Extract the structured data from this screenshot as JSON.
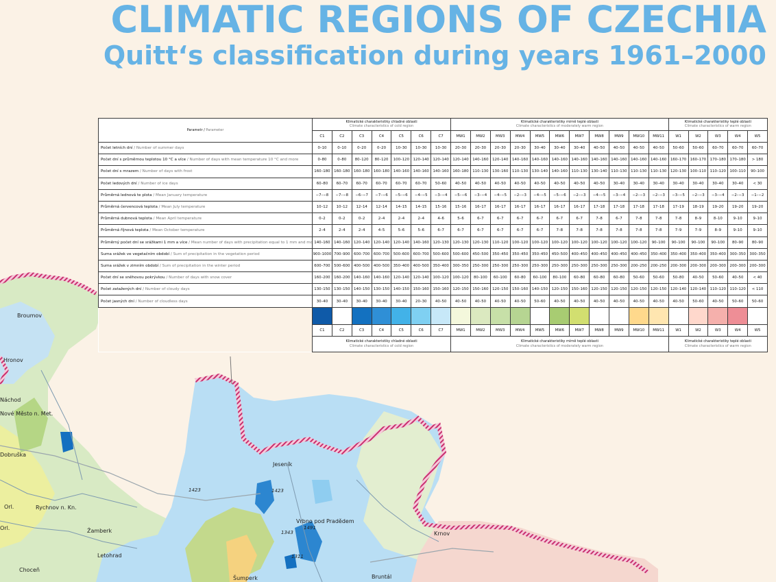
{
  "title": "CLIMATIC REGIONS OF CZECHIA",
  "subtitle": "Quitt‘s classification during years 1961–2000",
  "table": {
    "param_header": {
      "cz": "Parametr",
      "en": "Parameter"
    },
    "groups": [
      {
        "cz": "Klimatické charakteristiky chladné oblasti",
        "en": "Climate characteristics of cold region"
      },
      {
        "cz": "Klimatické charakteristiky mírně teplé oblasti",
        "en": "Climate characteristics of moderately warm region"
      },
      {
        "cz": "Klimatické charakteristiky teplé oblasti",
        "en": "Climate characteristics of warm region"
      }
    ],
    "regions": [
      "C1",
      "C2",
      "C3",
      "C4",
      "C5",
      "C6",
      "C7",
      "MW1",
      "MW2",
      "MW3",
      "MW4",
      "MW5",
      "MW6",
      "MW7",
      "MW8",
      "MW9",
      "MW10",
      "MW11",
      "W1",
      "W2",
      "W3",
      "W4",
      "W5"
    ],
    "swatch_colors": [
      "#0f5aa8",
      "#ffffff",
      "#1371c0",
      "#2f8fd6",
      "#42b2e8",
      "#7fd0f2",
      "#c7e8f8",
      "#f4f8dc",
      "#dbe9c0",
      "#c7e0a8",
      "#b6d592",
      "#ffffff",
      "#a8cc72",
      "#d2df70",
      "#ffffff",
      "#ffffff",
      "#ffd98c",
      "#ffe6b0",
      "#ffffff",
      "#ffd8cc",
      "#f5b0ac",
      "#ee8e96",
      "#ffffff"
    ],
    "rows": [
      {
        "cz": "Počet letních dní",
        "en": "Number of summer days",
        "values": [
          "0–10",
          "0–10",
          "0–20",
          "0–20",
          "10–30",
          "10–30",
          "10–30",
          "20–30",
          "20–30",
          "20–30",
          "20–30",
          "30–40",
          "30–40",
          "30–40",
          "40–50",
          "40–50",
          "40–50",
          "40–50",
          "50–60",
          "50–60",
          "60–70",
          "60–70",
          "60–70"
        ]
      },
      {
        "cz": "Počet dní s průměrnou teplotou 10 °C a více",
        "en": "Number of days with mean temperature 10 °C and more",
        "values": [
          "0–80",
          "0–80",
          "80–120",
          "80–120",
          "100–120",
          "120–140",
          "120–140",
          "120–140",
          "140–160",
          "120–140",
          "140–160",
          "140–160",
          "140–160",
          "140–160",
          "140–160",
          "140–160",
          "140–160",
          "140–160",
          "160–170",
          "160–170",
          "170–180",
          "170–180",
          "> 180"
        ]
      },
      {
        "cz": "Počet dní s mrazem",
        "en": "Number of days with frost",
        "values": [
          "160–180",
          "160–180",
          "160–180",
          "160–180",
          "140–160",
          "140–160",
          "140–160",
          "160–180",
          "110–130",
          "130–160",
          "110–130",
          "130–140",
          "140–160",
          "110–130",
          "130–140",
          "110–130",
          "110–130",
          "110–130",
          "120–130",
          "100–110",
          "110–120",
          "100–110",
          "90–100"
        ]
      },
      {
        "cz": "Počet ledových dní",
        "en": "Number of ice days",
        "values": [
          "60–80",
          "60–70",
          "60–70",
          "60–70",
          "60–70",
          "60–70",
          "50–60",
          "40–50",
          "40–50",
          "40–50",
          "40–50",
          "40–50",
          "40–50",
          "40–50",
          "40–50",
          "30–40",
          "30–40",
          "30–40",
          "30–40",
          "30–40",
          "30–40",
          "30–40",
          "< 30"
        ]
      },
      {
        "cz": "Průměrná lednová te  plota",
        "en": "Mean January temperature",
        "values": [
          "−7–−8",
          "−7–−8",
          "−6–−7",
          "−7–−6",
          "−5–−6",
          "−4–−5",
          "−3–−4",
          "−5–−6",
          "−3–−4",
          "−4–−5",
          "−2–−3",
          "−4–−5",
          "−5–−6",
          "−2–−3",
          "−4–−5",
          "−3–−4",
          "−2–−3",
          "−2–−3",
          "−3–−5",
          "−2–−3",
          "−3–−4",
          "−2–−3",
          "−1–−2"
        ]
      },
      {
        "cz": "Průměrná červencová teplota",
        "en": "Mean July temperature",
        "values": [
          "10–12",
          "10–12",
          "12–14",
          "12–14",
          "14–15",
          "14–15",
          "15–16",
          "15–16",
          "16–17",
          "16–17",
          "16–17",
          "16–17",
          "16–17",
          "16–17",
          "17–18",
          "17–18",
          "17–18",
          "17–18",
          "17–19",
          "18–19",
          "19–20",
          "19–20",
          "19–20"
        ]
      },
      {
        "cz": "Průměrná dubnová teplota",
        "en": "Mean April temperature",
        "values": [
          "0–2",
          "0–2",
          "0–2",
          "2–4",
          "2–4",
          "2–4",
          "4–6",
          "5–6",
          "6–7",
          "6–7",
          "6–7",
          "6–7",
          "6–7",
          "6–7",
          "7–8",
          "6–7",
          "7–8",
          "7–8",
          "7–8",
          "8–9",
          "8–10",
          "9–10",
          "9–10"
        ]
      },
      {
        "cz": "Průměrná říjnová teplota",
        "en": "Mean October temperature",
        "values": [
          "2–4",
          "2–4",
          "2–4",
          "4–5",
          "5–6",
          "5–6",
          "6–7",
          "6–7",
          "6–7",
          "6–7",
          "6–7",
          "6–7",
          "7–8",
          "7–8",
          "7–8",
          "7–8",
          "7–8",
          "7–8",
          "7–9",
          "7–9",
          "8–9",
          "9–10",
          "9–10"
        ]
      },
      {
        "cz": "Průměrný počet dní se srážkami 1 mm a více",
        "en": "Mean number of days with precipitation equal to 1 mm and more",
        "values": [
          "140–160",
          "140–160",
          "120–140",
          "120–140",
          "120–140",
          "140–160",
          "120–130",
          "120–130",
          "120–130",
          "110–120",
          "100–120",
          "100–120",
          "100–120",
          "100–120",
          "100–120",
          "100–120",
          "100–120",
          "90–100",
          "90–100",
          "90–100",
          "90–100",
          "80–90",
          "80–90"
        ]
      },
      {
        "cz": "Suma srážek ve vegetačním období",
        "en": "Sum of precipitation in the vegetation period",
        "values": [
          "900–1000",
          "700–900",
          "600–700",
          "600–700",
          "500–600",
          "600–700",
          "500–600",
          "500–600",
          "450–500",
          "350–450",
          "350–450",
          "350–450",
          "450–500",
          "400–450",
          "400–450",
          "400–450",
          "400–450",
          "350–400",
          "350–400",
          "350–400",
          "350–400",
          "300–350",
          "300–350"
        ]
      },
      {
        "cz": "Suma srážek v zimním období",
        "en": "Sum of precipitation in the winter period",
        "values": [
          "600–700",
          "500–600",
          "400–500",
          "400–500",
          "350–400",
          "400–500",
          "350–400",
          "300–350",
          "250–300",
          "250–300",
          "250–300",
          "250–300",
          "250–300",
          "250–300",
          "250–300",
          "250–300",
          "200–250",
          "200–250",
          "200–300",
          "200–300",
          "200–300",
          "200–300",
          "200–300"
        ]
      },
      {
        "cz": "Počet dní se sněhovou pokrývkou",
        "en": "Number of days with snow cover",
        "values": [
          "160–200",
          "160–200",
          "140–160",
          "140–160",
          "120–140",
          "120–140",
          "100–120",
          "100–120",
          "80–100",
          "60–100",
          "60–80",
          "60–100",
          "80–100",
          "60–80",
          "60–80",
          "60–80",
          "50–60",
          "50–60",
          "50–80",
          "40–50",
          "50–60",
          "40–50",
          "< 40"
        ]
      },
      {
        "cz": "Počet zatažených dní",
        "en": "Number of cloudy days",
        "values": [
          "130–150",
          "130–150",
          "140–150",
          "130–150",
          "140–150",
          "150–160",
          "150–160",
          "120–150",
          "150–160",
          "120–150",
          "150–160",
          "140–150",
          "120–150",
          "150–160",
          "120–150",
          "120–150",
          "120–150",
          "120–150",
          "120–140",
          "120–140",
          "110–120",
          "110–120",
          "< 110"
        ]
      },
      {
        "cz": "Počet jasných dní",
        "en": "Number of cloudless days",
        "values": [
          "30–40",
          "30–40",
          "30–40",
          "30–40",
          "30–40",
          "20–30",
          "40–50",
          "40–50",
          "40–50",
          "40–50",
          "40–50",
          "50–60",
          "40–50",
          "40–50",
          "40–50",
          "40–50",
          "40–50",
          "40–50",
          "40–50",
          "50–60",
          "40–50",
          "50–60",
          "50–60"
        ]
      }
    ]
  },
  "map": {
    "places": [
      "Broumov",
      "Hronov",
      "Náchod",
      "Nové Město n. Met.",
      "Dobruška",
      "Rychnov n. Kn.",
      "Orl.",
      "Orl.",
      "Žamberk",
      "Letohrad",
      "Choceň",
      "Šumperk",
      "Jeseník",
      "Vrbno pod Pradědem",
      "Krnov",
      "Bruntál"
    ],
    "elevations": [
      "1423",
      "1423",
      "1343",
      "1491",
      "1311"
    ],
    "colors": {
      "border": "#c8306e",
      "cold": "#9fd2f1",
      "moderate": "#dcecc0",
      "warm": "#f3c7c2",
      "river": "#7e9ab0"
    }
  }
}
